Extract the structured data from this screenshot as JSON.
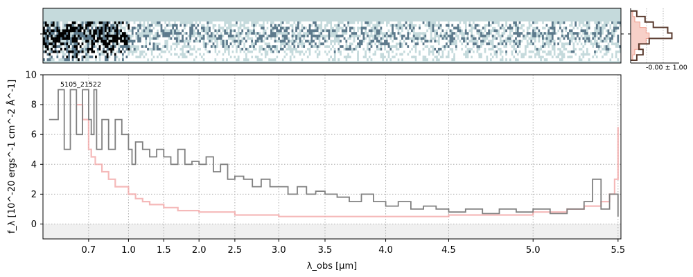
{
  "chart_data": [
    {
      "panel": "2d-spectrum",
      "type": "heatmap",
      "colormap": [
        "#ffffff",
        "#c5dadc",
        "#5d7a8c",
        "#000000"
      ],
      "background_color": "#c5dadc",
      "rows": 15,
      "cols": 300
    },
    {
      "panel": "histogram",
      "type": "bar",
      "label": "-0.00 ± 1.00",
      "bins": [
        -1.6,
        -1.2,
        -0.8,
        -0.4,
        0.0,
        0.4,
        0.8,
        1.2,
        1.6
      ],
      "data_hist": [
        0.15,
        0.3,
        0.2,
        0.45,
        1.0,
        0.9,
        0.55,
        0.35,
        0.15
      ],
      "model_fill": [
        0.1,
        0.2,
        0.45,
        0.75,
        0.9,
        0.75,
        0.45,
        0.2,
        0.1
      ],
      "line_color": "#5a3b2f",
      "fill_color": "#f7d0c8"
    },
    {
      "panel": "1d-spectrum",
      "type": "line",
      "annotation": "5105_21522",
      "ylabel": "f_λ [10^-20 ergs^-1 cm^-2 Å^-1]",
      "xlabel": "λ_obs [μm]",
      "ylim": [
        -1,
        10
      ],
      "y_ticks": [
        0,
        2,
        4,
        6,
        8,
        10
      ],
      "x_ticks": [
        {
          "wave": 0.7,
          "label": "0.7"
        },
        {
          "wave": 1.0,
          "label": "1.0"
        },
        {
          "wave": 1.5,
          "label": "1.5"
        },
        {
          "wave": 2.0,
          "label": "2.0"
        },
        {
          "wave": 2.5,
          "label": "2.5"
        },
        {
          "wave": 3.0,
          "label": "3.0"
        },
        {
          "wave": 3.5,
          "label": "3.5"
        },
        {
          "wave": 4.0,
          "label": "4.0"
        },
        {
          "wave": 4.5,
          "label": "4.5"
        },
        {
          "wave": 5.0,
          "label": "5.0"
        },
        {
          "wave": 5.5,
          "label": "5.5"
        }
      ],
      "x_axis_mapping": [
        {
          "wave": 0.55,
          "u": 0.0
        },
        {
          "wave": 0.7,
          "u": 0.079
        },
        {
          "wave": 1.0,
          "u": 0.148
        },
        {
          "wave": 1.5,
          "u": 0.209
        },
        {
          "wave": 2.0,
          "u": 0.27
        },
        {
          "wave": 2.5,
          "u": 0.332
        },
        {
          "wave": 3.0,
          "u": 0.408
        },
        {
          "wave": 3.5,
          "u": 0.488
        },
        {
          "wave": 4.0,
          "u": 0.593
        },
        {
          "wave": 4.5,
          "u": 0.702
        },
        {
          "wave": 5.0,
          "u": 0.848
        },
        {
          "wave": 5.5,
          "u": 0.995
        },
        {
          "wave": 5.53,
          "u": 1.0
        }
      ],
      "grid": true,
      "series": [
        {
          "role": "flux",
          "color": "#808080",
          "points": [
            [
              0.57,
              7
            ],
            [
              0.6,
              9
            ],
            [
              0.62,
              5
            ],
            [
              0.64,
              9
            ],
            [
              0.66,
              6
            ],
            [
              0.68,
              9
            ],
            [
              0.7,
              7
            ],
            [
              0.72,
              6
            ],
            [
              0.74,
              9
            ],
            [
              0.76,
              5
            ],
            [
              0.8,
              7
            ],
            [
              0.85,
              5
            ],
            [
              0.9,
              7
            ],
            [
              0.95,
              6
            ],
            [
              1.0,
              5
            ],
            [
              1.05,
              4
            ],
            [
              1.1,
              5.5
            ],
            [
              1.2,
              5
            ],
            [
              1.3,
              4.5
            ],
            [
              1.4,
              5
            ],
            [
              1.5,
              4.5
            ],
            [
              1.6,
              4
            ],
            [
              1.7,
              5
            ],
            [
              1.8,
              4
            ],
            [
              1.9,
              4.2
            ],
            [
              2.0,
              4
            ],
            [
              2.1,
              4.5
            ],
            [
              2.2,
              3.5
            ],
            [
              2.3,
              4
            ],
            [
              2.4,
              3
            ],
            [
              2.5,
              3.2
            ],
            [
              2.6,
              3
            ],
            [
              2.7,
              2.5
            ],
            [
              2.8,
              3
            ],
            [
              2.9,
              2.5
            ],
            [
              3.0,
              2.5
            ],
            [
              3.1,
              2
            ],
            [
              3.2,
              2.5
            ],
            [
              3.3,
              2
            ],
            [
              3.4,
              2.2
            ],
            [
              3.5,
              2
            ],
            [
              3.6,
              1.8
            ],
            [
              3.7,
              1.5
            ],
            [
              3.8,
              2
            ],
            [
              3.9,
              1.5
            ],
            [
              4.0,
              1.2
            ],
            [
              4.1,
              1.5
            ],
            [
              4.2,
              1
            ],
            [
              4.3,
              1.2
            ],
            [
              4.4,
              1
            ],
            [
              4.5,
              0.8
            ],
            [
              4.6,
              1
            ],
            [
              4.7,
              0.7
            ],
            [
              4.8,
              1
            ],
            [
              4.9,
              0.8
            ],
            [
              5.0,
              1
            ],
            [
              5.1,
              0.7
            ],
            [
              5.2,
              1
            ],
            [
              5.3,
              1.5
            ],
            [
              5.35,
              3
            ],
            [
              5.4,
              1
            ],
            [
              5.45,
              2
            ],
            [
              5.5,
              0.5
            ]
          ]
        },
        {
          "role": "uncertainty",
          "color": "#f2a7a7",
          "points": [
            [
              0.66,
              8
            ],
            [
              0.68,
              7
            ],
            [
              0.7,
              5
            ],
            [
              0.72,
              4.5
            ],
            [
              0.75,
              4
            ],
            [
              0.8,
              3.5
            ],
            [
              0.85,
              3
            ],
            [
              0.9,
              2.5
            ],
            [
              1.0,
              2
            ],
            [
              1.1,
              1.7
            ],
            [
              1.2,
              1.5
            ],
            [
              1.3,
              1.3
            ],
            [
              1.5,
              1.1
            ],
            [
              1.7,
              0.9
            ],
            [
              2.0,
              0.8
            ],
            [
              2.5,
              0.6
            ],
            [
              3.0,
              0.5
            ],
            [
              3.5,
              0.5
            ],
            [
              4.0,
              0.5
            ],
            [
              4.5,
              0.6
            ],
            [
              5.0,
              0.8
            ],
            [
              5.2,
              1
            ],
            [
              5.3,
              1.2
            ],
            [
              5.4,
              1.5
            ],
            [
              5.45,
              2
            ],
            [
              5.48,
              3
            ],
            [
              5.5,
              6.5
            ]
          ]
        }
      ]
    }
  ]
}
